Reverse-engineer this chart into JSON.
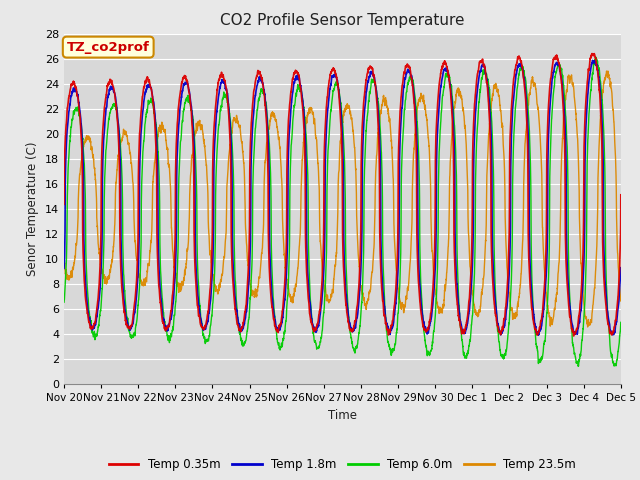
{
  "title": "CO2 Profile Sensor Temperature",
  "ylabel": "Senor Temperature (C)",
  "xlabel": "Time",
  "annotation": "TZ_co2prof",
  "annotation_color": "#cc0000",
  "annotation_bg": "#ffffdd",
  "annotation_border": "#cc8800",
  "ylim": [
    0,
    28
  ],
  "yticks": [
    0,
    2,
    4,
    6,
    8,
    10,
    12,
    14,
    16,
    18,
    20,
    22,
    24,
    26,
    28
  ],
  "xtick_labels": [
    "Nov 20",
    "Nov 21",
    "Nov 22",
    "Nov 23",
    "Nov 24",
    "Nov 25",
    "Nov 26",
    "Nov 27",
    "Nov 28",
    "Nov 29",
    "Nov 30",
    "Dec 1",
    "Dec 2",
    "Dec 3",
    "Dec 4",
    "Dec 5"
  ],
  "series": [
    {
      "label": "Temp 0.35m",
      "color": "#dd0000"
    },
    {
      "label": "Temp 1.8m",
      "color": "#0000cc"
    },
    {
      "label": "Temp 6.0m",
      "color": "#00cc00"
    },
    {
      "label": "Temp 23.5m",
      "color": "#dd8800"
    }
  ],
  "background_color": "#d8d8d8",
  "grid_color": "#ffffff",
  "n_days": 15,
  "spd": 288
}
